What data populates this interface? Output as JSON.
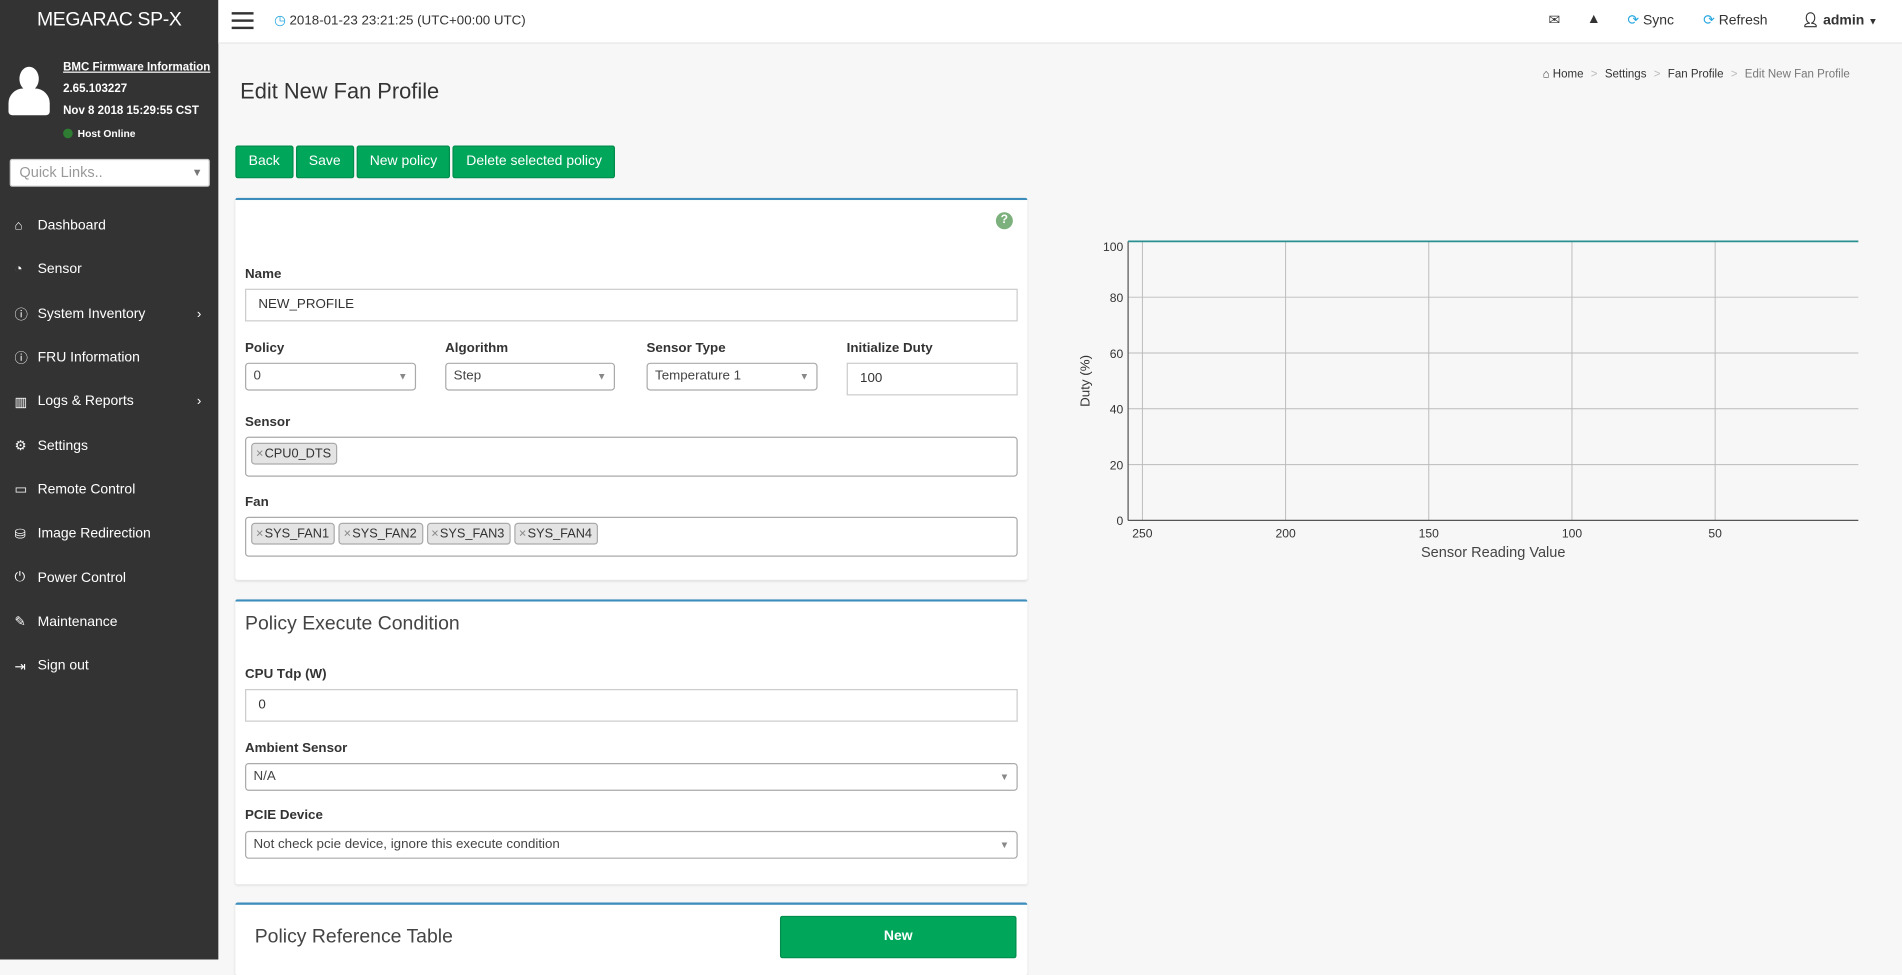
{
  "sidebar": {
    "brand": "MEGARAC SP-X",
    "firmware_link": "BMC Firmware Information",
    "firmware_version": "2.65.103227",
    "firmware_date": "Nov 8 2018 15:29:55 CST",
    "host_status": "Host Online",
    "host_status_color": "#2e7d32",
    "quick_links_placeholder": "Quick Links..",
    "items": [
      {
        "label": "Dashboard",
        "icon": "home-icon"
      },
      {
        "label": "Sensor",
        "icon": "tachometer-icon"
      },
      {
        "label": "System Inventory",
        "icon": "info-icon",
        "has_submenu": true
      },
      {
        "label": "FRU Information",
        "icon": "info-icon"
      },
      {
        "label": "Logs & Reports",
        "icon": "bar-chart-icon",
        "has_submenu": true
      },
      {
        "label": "Settings",
        "icon": "gear-icon"
      },
      {
        "label": "Remote Control",
        "icon": "monitor-icon"
      },
      {
        "label": "Image Redirection",
        "icon": "drive-icon"
      },
      {
        "label": "Power Control",
        "icon": "power-icon"
      },
      {
        "label": "Maintenance",
        "icon": "wrench-icon"
      },
      {
        "label": "Sign out",
        "icon": "sign-out-icon"
      }
    ]
  },
  "topbar": {
    "datetime": "2018-01-23 23:21:25 (UTC+00:00 UTC)",
    "sync": "Sync",
    "refresh": "Refresh",
    "user": "admin"
  },
  "page": {
    "title": "Edit New Fan Profile",
    "breadcrumb": [
      "Home",
      "Settings",
      "Fan Profile",
      "Edit New Fan Profile"
    ],
    "buttons": {
      "back": "Back",
      "save": "Save",
      "new_policy": "New policy",
      "delete_policy": "Delete selected policy"
    },
    "accent": "#00a65a"
  },
  "form": {
    "name_label": "Name",
    "name_value": "NEW_PROFILE",
    "policy_label": "Policy",
    "policy_value": "0",
    "algorithm_label": "Algorithm",
    "algorithm_value": "Step",
    "sensor_type_label": "Sensor Type",
    "sensor_type_value": "Temperature 1",
    "init_duty_label": "Initialize Duty",
    "init_duty_value": "100",
    "sensor_label": "Sensor",
    "sensors": [
      "CPU0_DTS"
    ],
    "fan_label": "Fan",
    "fans": [
      "SYS_FAN1",
      "SYS_FAN2",
      "SYS_FAN3",
      "SYS_FAN4"
    ]
  },
  "condition": {
    "title": "Policy Execute Condition",
    "cpu_tdp_label": "CPU Tdp (W)",
    "cpu_tdp_value": "0",
    "ambient_label": "Ambient Sensor",
    "ambient_value": "N/A",
    "pcie_label": "PCIE Device",
    "pcie_value": "Not check pcie device, ignore this execute condition"
  },
  "reference": {
    "title": "Policy Reference Table",
    "new_button": "New"
  },
  "chart_data": {
    "type": "line",
    "xlabel": "Sensor Reading Value",
    "ylabel": "Duty (%)",
    "x_reversed": true,
    "xlim": [
      0,
      255
    ],
    "ylim": [
      0,
      100
    ],
    "x_ticks": [
      "250",
      "200",
      "150",
      "100",
      "50"
    ],
    "x_tick_values": [
      250,
      200,
      150,
      100,
      50
    ],
    "y_ticks": [
      "0",
      "20",
      "40",
      "60",
      "80",
      "100"
    ],
    "y_tick_values": [
      0,
      20,
      40,
      60,
      80,
      100
    ],
    "grid": true,
    "series": [
      {
        "x": [
          255,
          0
        ],
        "y": [
          100,
          100
        ],
        "color": "#2a8f8f"
      }
    ]
  }
}
